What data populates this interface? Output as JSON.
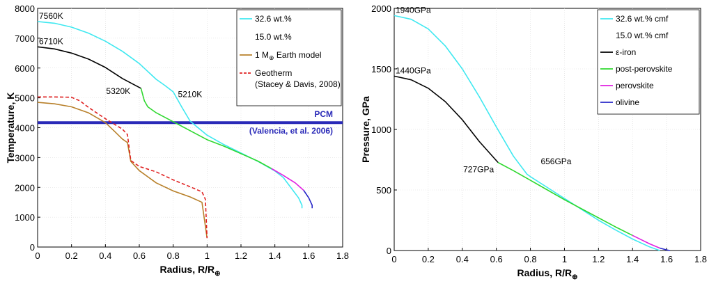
{
  "chart_data": [
    {
      "type": "line",
      "xlabel": "Radius, R/R",
      "xlabel_sub": "⊕",
      "ylabel": "Temperature, K",
      "xlim": [
        0,
        1.8
      ],
      "ylim": [
        0,
        8000
      ],
      "xticks": [
        "0",
        "0.2",
        "0.4",
        "0.6",
        "0.8",
        "1",
        "1.2",
        "1.4",
        "1.6",
        "1.8"
      ],
      "yticks": [
        "0",
        "1000",
        "2000",
        "3000",
        "4000",
        "5000",
        "6000",
        "7000",
        "8000"
      ],
      "grid": true,
      "legend_position": "top-right",
      "legend": [
        {
          "label": "32.6 wt.%",
          "color": "#3fe8f0"
        },
        {
          "label": "15.0 wt.%",
          "color": ""
        },
        {
          "label": "1 M",
          "sub": "⊕",
          "suffix": " Earth model",
          "color": "#b8802a"
        },
        {
          "label": "Geotherm",
          "color": "#e02020",
          "dashed": true
        },
        {
          "label": "(Stacey & Davis, 2008)",
          "color": ""
        }
      ],
      "pcm": {
        "label": "PCM",
        "source": "(Valencia, et al. 2006)",
        "value": 4170,
        "color": "#2a2ab8"
      },
      "annotations": [
        {
          "text": "7560K",
          "x": 0.0,
          "y": 7560
        },
        {
          "text": "6710K",
          "x": 0.0,
          "y": 6710
        },
        {
          "text": "5320K",
          "x": 0.61,
          "y": 5320
        },
        {
          "text": "5210K",
          "x": 0.82,
          "y": 5210
        }
      ],
      "series": [
        {
          "key": "cyan",
          "color": "#3fe8f0",
          "x": [
            0,
            0.1,
            0.2,
            0.3,
            0.4,
            0.5,
            0.6,
            0.7,
            0.75,
            0.8,
            0.85,
            0.9,
            1.0,
            1.1,
            1.2,
            1.3,
            1.4,
            1.45,
            1.5,
            1.54,
            1.56,
            1.56
          ],
          "y": [
            7560,
            7500,
            7370,
            7170,
            6900,
            6560,
            6150,
            5620,
            5420,
            5200,
            4700,
            4220,
            3750,
            3430,
            3150,
            2870,
            2550,
            2330,
            1950,
            1650,
            1400,
            1300
          ]
        },
        {
          "key": "black",
          "color": "#000000",
          "x": [
            0,
            0.1,
            0.2,
            0.3,
            0.4,
            0.5,
            0.61
          ],
          "y": [
            6710,
            6640,
            6500,
            6300,
            6020,
            5650,
            5320
          ]
        },
        {
          "key": "green",
          "color": "#2fd82f",
          "x": [
            0.61,
            0.63,
            0.65,
            0.7,
            0.8,
            0.9,
            1.0,
            1.1,
            1.2,
            1.3,
            1.38
          ],
          "y": [
            5320,
            4900,
            4700,
            4500,
            4200,
            3900,
            3600,
            3380,
            3130,
            2880,
            2630
          ]
        },
        {
          "key": "magenta",
          "color": "#e020e0",
          "x": [
            1.38,
            1.45,
            1.52,
            1.57
          ],
          "y": [
            2630,
            2400,
            2150,
            1900
          ]
        },
        {
          "key": "blue",
          "color": "#2828c8",
          "x": [
            1.57,
            1.6,
            1.62,
            1.62
          ],
          "y": [
            1900,
            1650,
            1400,
            1300
          ]
        },
        {
          "key": "earth",
          "color": "#b8802a",
          "x": [
            0,
            0.1,
            0.2,
            0.3,
            0.4,
            0.45,
            0.5,
            0.53,
            0.55,
            0.6,
            0.7,
            0.8,
            0.9,
            0.97,
            1.0
          ],
          "y": [
            4850,
            4800,
            4700,
            4500,
            4170,
            3900,
            3620,
            3500,
            2870,
            2560,
            2150,
            1880,
            1680,
            1500,
            300
          ]
        },
        {
          "key": "geotherm",
          "color": "#e02020",
          "dashed": true,
          "x": [
            0,
            0.1,
            0.2,
            0.25,
            0.3,
            0.4,
            0.5,
            0.53,
            0.55,
            0.6,
            0.7,
            0.8,
            0.9,
            0.97,
            0.99,
            1.0
          ],
          "y": [
            5030,
            5030,
            5020,
            4900,
            4680,
            4300,
            3950,
            3770,
            2900,
            2700,
            2520,
            2250,
            2020,
            1850,
            1600,
            300
          ]
        }
      ]
    },
    {
      "type": "line",
      "xlabel": "Radius, R/R",
      "xlabel_sub": "⊕",
      "ylabel": "Pressure, GPa",
      "xlim": [
        0,
        1.8
      ],
      "ylim": [
        0,
        2000
      ],
      "xticks": [
        "0",
        "0.2",
        "0.4",
        "0.6",
        "0.8",
        "1",
        "1.2",
        "1.4",
        "1.6",
        "1.8"
      ],
      "yticks": [
        "0",
        "500",
        "1000",
        "1500",
        "2000"
      ],
      "grid": true,
      "legend_position": "top-right",
      "legend": [
        {
          "label": "32.6 wt.% cmf",
          "color": "#3fe8f0"
        },
        {
          "label": "15.0 wt.% cmf",
          "color": ""
        },
        {
          "label": "ε-iron",
          "color": "#000000"
        },
        {
          "label": "post-perovskite",
          "color": "#2fd82f"
        },
        {
          "label": "perovskite",
          "color": "#e020e0"
        },
        {
          "label": "olivine",
          "color": "#2828c8"
        }
      ],
      "annotations": [
        {
          "text": "1940GPa",
          "x": 0.0,
          "y": 1940
        },
        {
          "text": "1440GPa",
          "x": 0.0,
          "y": 1440
        },
        {
          "text": "727GPa",
          "x": 0.61,
          "y": 727
        },
        {
          "text": "656GPa",
          "x": 0.82,
          "y": 656
        }
      ],
      "series": [
        {
          "key": "cyan",
          "color": "#3fe8f0",
          "x": [
            0,
            0.1,
            0.2,
            0.3,
            0.4,
            0.5,
            0.6,
            0.7,
            0.78,
            0.8,
            0.9,
            1.0,
            1.1,
            1.2,
            1.3,
            1.4,
            1.5,
            1.56
          ],
          "y": [
            1940,
            1910,
            1830,
            1690,
            1500,
            1270,
            1020,
            780,
            630,
            610,
            520,
            430,
            340,
            250,
            170,
            95,
            30,
            0
          ]
        },
        {
          "key": "black",
          "color": "#000000",
          "x": [
            0,
            0.1,
            0.2,
            0.3,
            0.4,
            0.5,
            0.61
          ],
          "y": [
            1440,
            1410,
            1340,
            1230,
            1080,
            900,
            727
          ]
        },
        {
          "key": "green",
          "color": "#2fd82f",
          "x": [
            0.61,
            0.7,
            0.8,
            0.9,
            1.0,
            1.1,
            1.2,
            1.3,
            1.4
          ],
          "y": [
            727,
            660,
            580,
            500,
            420,
            345,
            270,
            195,
            125
          ]
        },
        {
          "key": "magenta",
          "color": "#e020e0",
          "x": [
            1.4,
            1.45,
            1.5,
            1.56
          ],
          "y": [
            125,
            90,
            55,
            20
          ]
        },
        {
          "key": "blue",
          "color": "#2828c8",
          "x": [
            1.56,
            1.6,
            1.62
          ],
          "y": [
            20,
            5,
            0
          ]
        }
      ]
    }
  ]
}
